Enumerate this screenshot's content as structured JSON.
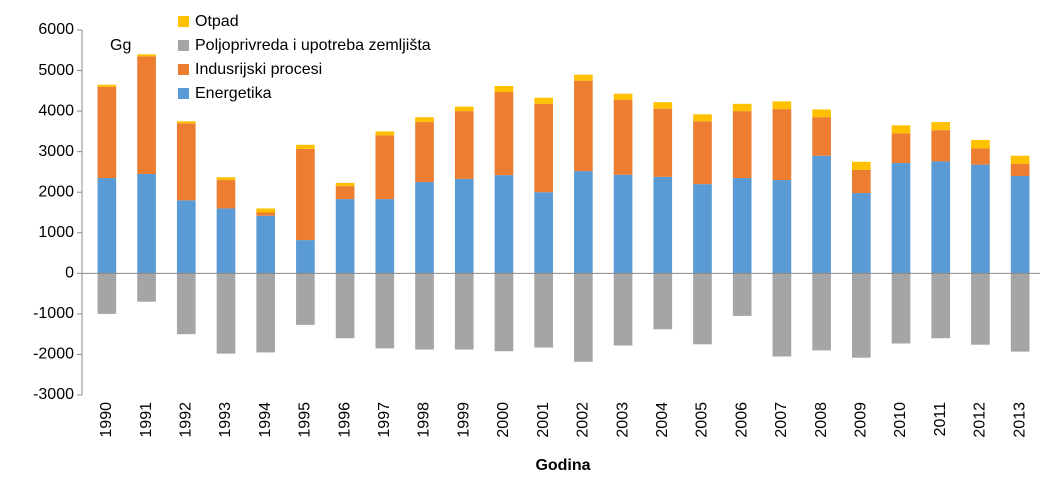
{
  "chart_data": {
    "type": "stacked_bar",
    "annotations": [
      "Gg"
    ],
    "x_label": "Godina",
    "categories": [
      "1990",
      "1991",
      "1992",
      "1993",
      "1994",
      "1995",
      "1996",
      "1997",
      "1998",
      "1999",
      "2000",
      "2001",
      "2002",
      "2003",
      "2004",
      "2005",
      "2006",
      "2007",
      "2008",
      "2009",
      "2010",
      "2011",
      "2012",
      "2013"
    ],
    "series": [
      {
        "name": "Otpad",
        "color": "#ffc000",
        "values": [
          50,
          50,
          50,
          70,
          100,
          100,
          80,
          100,
          120,
          110,
          150,
          150,
          150,
          150,
          160,
          170,
          180,
          190,
          190,
          200,
          200,
          200,
          210,
          200
        ]
      },
      {
        "name": "Poljoprivreda i upotreba zemljišta",
        "color": "#a5a5a5",
        "values": [
          -1000,
          -700,
          -1500,
          -1980,
          -1950,
          -1270,
          -1600,
          -1850,
          -1880,
          -1880,
          -1920,
          -1830,
          -2180,
          -1780,
          -1380,
          -1750,
          -1050,
          -2050,
          -1900,
          -2080,
          -1730,
          -1600,
          -1760,
          -1930
        ]
      },
      {
        "name": "Indusrijski procesi",
        "color": "#ed7d31",
        "values": [
          2250,
          2900,
          1900,
          700,
          80,
          2250,
          320,
          1570,
          1480,
          1670,
          2050,
          2180,
          2230,
          1850,
          1680,
          1550,
          1650,
          1750,
          950,
          570,
          730,
          770,
          400,
          300
        ]
      },
      {
        "name": "Energetika",
        "color": "#5b9bd5",
        "values": [
          2350,
          2450,
          1800,
          1600,
          1420,
          820,
          1830,
          1830,
          2250,
          2330,
          2420,
          2000,
          2520,
          2430,
          2380,
          2200,
          2350,
          2300,
          2900,
          1980,
          2720,
          2760,
          2680,
          2400
        ]
      }
    ],
    "ylim": [
      -3000,
      6000
    ],
    "yticks": [
      -3000,
      -2000,
      -1000,
      0,
      1000,
      2000,
      3000,
      4000,
      5000,
      6000
    ],
    "grid": false,
    "legend": "top-left"
  }
}
